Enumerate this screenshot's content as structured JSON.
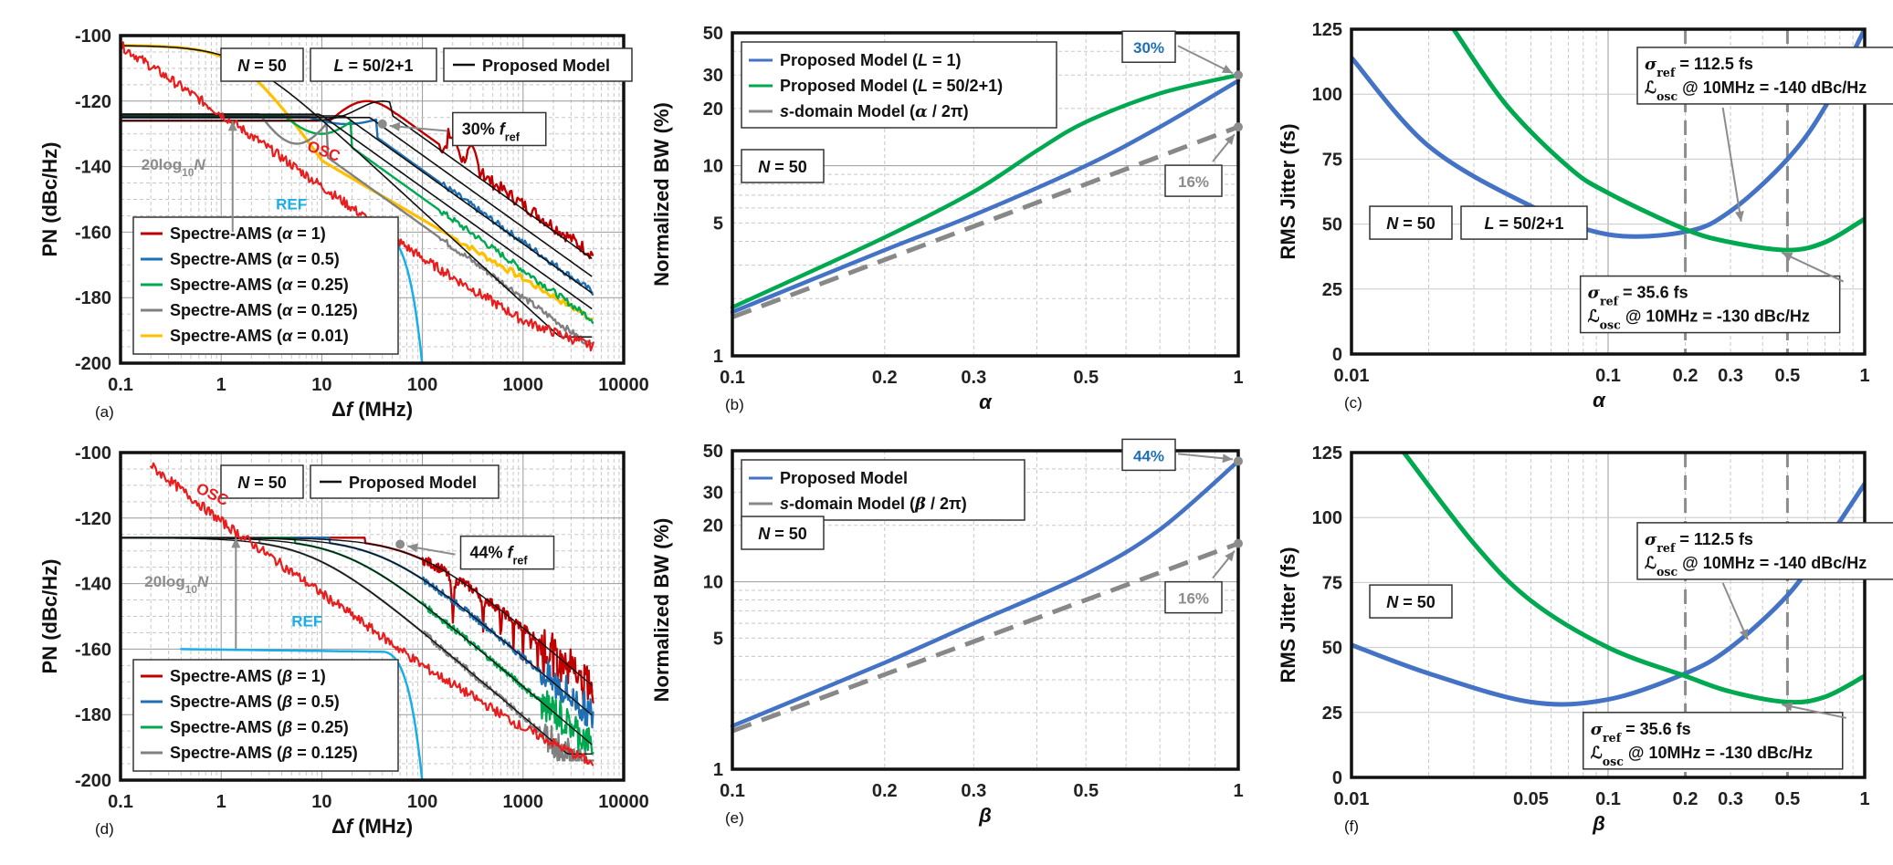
{
  "colors": {
    "red": "#C00000",
    "blue": "#1F6FB4",
    "green": "#00A84F",
    "gray": "#808080",
    "yellow": "#FFC000",
    "black": "#111111",
    "cyan": "#19AEE8",
    "osc": "#E81E1E",
    "modelBlue": "#4472C4",
    "annBlue": "#1F6FB4",
    "annGreen": "#00A84F"
  },
  "chart_data": [
    {
      "id": "a",
      "type": "line",
      "panel_label": "(a)",
      "xlabel": "Δf (MHz)",
      "ylabel": "PN (dBc/Hz)",
      "xlim": [
        0.1,
        10000
      ],
      "ylim": [
        -200,
        -100
      ],
      "xticks": [
        "0.1",
        "1",
        "10",
        "100",
        "1000",
        "10000"
      ],
      "yticks": [
        "-200",
        "-180",
        "-160",
        "-140",
        "-120",
        "-100"
      ],
      "boxes": [
        "N = 50",
        "L = 50/2+1",
        "Proposed Model"
      ],
      "legend": [
        "Spectre-AMS (α = 1)",
        "Spectre-AMS (α = 0.5)",
        "Spectre-AMS (α = 0.25)",
        "Spectre-AMS (α = 0.125)",
        "Spectre-AMS (α = 0.01)"
      ],
      "annotations": {
        "peak": "30% fref",
        "gain": "20log10N",
        "osc": "OSC",
        "ref": "REF"
      },
      "series": [
        {
          "name": "Spectre-AMS (α = 1)",
          "peak_hz_mhz": 35,
          "peak_dbc": -120,
          "floor_dbc": -126
        },
        {
          "name": "Spectre-AMS (α = 0.5)",
          "peak_hz_mhz": 25,
          "floor_dbc": -125
        },
        {
          "name": "Spectre-AMS (α = 0.25)",
          "peak_hz_mhz": 15,
          "floor_dbc": -125
        },
        {
          "name": "Spectre-AMS (α = 0.125)",
          "peak_hz_mhz": 8,
          "floor_dbc": -124
        },
        {
          "name": "Spectre-AMS (α = 0.01)",
          "floor_dbc": -103,
          "end_dbc": -195
        },
        {
          "name": "OSC",
          "x": [
            0.1,
            1,
            10,
            100,
            1000,
            5000
          ],
          "y": [
            -103,
            -124,
            -146,
            -168,
            -187,
            -195
          ]
        },
        {
          "name": "REF",
          "floor_dbc": -160,
          "cutoff_mhz": 100
        }
      ]
    },
    {
      "id": "b",
      "type": "line",
      "panel_label": "(b)",
      "xlabel": "α",
      "ylabel": "Normalized BW (%)",
      "xlim": [
        0.1,
        1
      ],
      "ylim": [
        1,
        50
      ],
      "xticks": [
        "0.1",
        "0.2",
        "0.3",
        "0.5",
        "1"
      ],
      "yticks": [
        "1",
        "5",
        "10",
        "20",
        "30",
        "50"
      ],
      "legend": [
        "Proposed Model (L = 1)",
        "Proposed Model (L = 50/2+1)",
        "s-domain Model (α / 2π)"
      ],
      "boxes": [
        "N = 50"
      ],
      "annotations": {
        "top": "30%",
        "dash": "16%"
      },
      "series": [
        {
          "name": "Proposed Model (L = 1)",
          "x": [
            0.1,
            0.2,
            0.3,
            0.5,
            0.7,
            1
          ],
          "y": [
            1.7,
            3.6,
            5.5,
            10,
            16,
            28
          ]
        },
        {
          "name": "Proposed Model (L = 50/2+1)",
          "x": [
            0.1,
            0.2,
            0.3,
            0.4,
            0.5,
            0.7,
            1
          ],
          "y": [
            1.8,
            4.2,
            7.3,
            12,
            17,
            24,
            30
          ]
        },
        {
          "name": "s-domain Model (α / 2π)",
          "x": [
            0.1,
            0.2,
            0.3,
            0.5,
            1
          ],
          "y": [
            1.6,
            3.2,
            4.8,
            8,
            16
          ]
        }
      ]
    },
    {
      "id": "c",
      "type": "line",
      "panel_label": "(c)",
      "xlabel": "α",
      "ylabel": "RMS Jitter (fs)",
      "xlim": [
        0.01,
        1
      ],
      "ylim": [
        0,
        125
      ],
      "xticks": [
        "0.01",
        "0.1",
        "0.2",
        "0.3",
        "0.5",
        "1"
      ],
      "yticks": [
        "0",
        "25",
        "50",
        "75",
        "100",
        "125"
      ],
      "boxes": [
        "N = 50",
        "L = 50/2+1"
      ],
      "annotations": {
        "blue_sigma": "σref = 112.5 fs",
        "blue_L": "ℒosc @ 10MHz = -140 dBc/Hz",
        "green_sigma": "σref = 35.6 fs",
        "green_L": "ℒosc @ 10MHz = -130 dBc/Hz"
      },
      "series": [
        {
          "name": "σref = 112.5 fs",
          "x": [
            0.01,
            0.02,
            0.05,
            0.1,
            0.2,
            0.3,
            0.5,
            0.7,
            1
          ],
          "y": [
            114,
            80,
            57,
            46,
            47,
            55,
            75,
            95,
            125
          ]
        },
        {
          "name": "σref = 35.6 fs",
          "x": [
            0.025,
            0.04,
            0.07,
            0.1,
            0.2,
            0.3,
            0.5,
            0.7,
            1
          ],
          "y": [
            125,
            96,
            72,
            62,
            48,
            43,
            40,
            43,
            52
          ]
        }
      ]
    },
    {
      "id": "d",
      "type": "line",
      "panel_label": "(d)",
      "xlabel": "Δf (MHz)",
      "ylabel": "PN (dBc/Hz)",
      "xlim": [
        0.1,
        10000
      ],
      "ylim": [
        -200,
        -100
      ],
      "xticks": [
        "0.1",
        "1",
        "10",
        "100",
        "1000",
        "10000"
      ],
      "yticks": [
        "-200",
        "-180",
        "-160",
        "-140",
        "-120",
        "-100"
      ],
      "boxes": [
        "N = 50",
        "Proposed Model"
      ],
      "legend": [
        "Spectre-AMS (β = 1)",
        "Spectre-AMS (β = 0.5)",
        "Spectre-AMS (β = 0.25)",
        "Spectre-AMS (β = 0.125)"
      ],
      "annotations": {
        "peak": "44% fref",
        "gain": "20log10N",
        "osc": "OSC",
        "ref": "REF"
      },
      "series": [
        {
          "name": "Spectre-AMS (β = 1)",
          "floor_dbc": -126,
          "notch_mhz": 100
        },
        {
          "name": "Spectre-AMS (β = 0.5)",
          "floor_dbc": -126
        },
        {
          "name": "Spectre-AMS (β = 0.25)",
          "floor_dbc": -126
        },
        {
          "name": "Spectre-AMS (β = 0.125)",
          "floor_dbc": -126
        },
        {
          "name": "OSC",
          "x": [
            0.2,
            1,
            10,
            100,
            1000,
            5000
          ],
          "y": [
            -104,
            -121,
            -143,
            -165,
            -184,
            -195
          ]
        },
        {
          "name": "REF",
          "floor_dbc": -160,
          "cutoff_mhz": 100
        }
      ]
    },
    {
      "id": "e",
      "type": "line",
      "panel_label": "(e)",
      "xlabel": "β",
      "ylabel": "Normalized BW (%)",
      "xlim": [
        0.1,
        1
      ],
      "ylim": [
        1,
        50
      ],
      "xticks": [
        "0.1",
        "0.2",
        "0.3",
        "0.5",
        "1"
      ],
      "yticks": [
        "1",
        "5",
        "10",
        "20",
        "30",
        "50"
      ],
      "legend": [
        "Proposed Model",
        "s-domain Model (β / 2π)"
      ],
      "boxes": [
        "N = 50"
      ],
      "annotations": {
        "top": "44%",
        "dash": "16%"
      },
      "series": [
        {
          "name": "Proposed Model",
          "x": [
            0.1,
            0.2,
            0.3,
            0.5,
            0.7,
            1
          ],
          "y": [
            1.7,
            3.7,
            6,
            11,
            19,
            44
          ]
        },
        {
          "name": "s-domain Model (β / 2π)",
          "x": [
            0.1,
            0.2,
            0.3,
            0.5,
            1
          ],
          "y": [
            1.6,
            3.2,
            4.8,
            8,
            16
          ]
        }
      ]
    },
    {
      "id": "f",
      "type": "line",
      "panel_label": "(f)",
      "xlabel": "β",
      "ylabel": "RMS Jitter (fs)",
      "xlim": [
        0.01,
        1
      ],
      "ylim": [
        0,
        125
      ],
      "xticks": [
        "0.01",
        "0.05",
        "0.1",
        "0.2",
        "0.3",
        "0.5",
        "1"
      ],
      "yticks": [
        "0",
        "25",
        "50",
        "75",
        "100",
        "125"
      ],
      "boxes": [
        "N = 50"
      ],
      "annotations": {
        "blue_sigma": "σref = 112.5 fs",
        "blue_L": "ℒosc @ 10MHz = -140 dBc/Hz",
        "green_sigma": "σref = 35.6 fs",
        "green_L": "ℒosc @ 10MHz = -130 dBc/Hz"
      },
      "series": [
        {
          "name": "σref = 112.5 fs",
          "x": [
            0.01,
            0.02,
            0.05,
            0.1,
            0.2,
            0.3,
            0.5,
            0.7,
            1
          ],
          "y": [
            51,
            40,
            29,
            30,
            40,
            50,
            70,
            90,
            113
          ]
        },
        {
          "name": "σref = 35.6 fs",
          "x": [
            0.016,
            0.03,
            0.05,
            0.1,
            0.2,
            0.3,
            0.5,
            0.7,
            1
          ],
          "y": [
            125,
            90,
            68,
            50,
            39,
            33,
            29,
            31,
            39
          ]
        }
      ]
    }
  ]
}
